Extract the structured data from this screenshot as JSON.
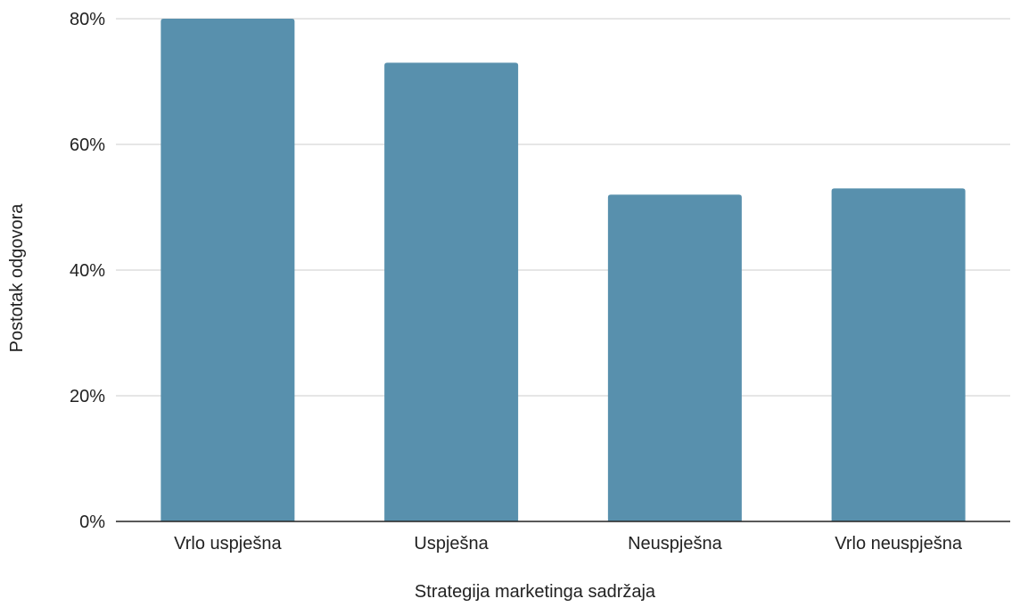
{
  "chart_data": {
    "type": "bar",
    "title": "",
    "xlabel": "Strategija marketinga sadržaja",
    "ylabel": "Postotak odgovora",
    "categories": [
      "Vrlo uspješna",
      "Uspješna",
      "Neuspješna",
      "Vrlo neuspješna"
    ],
    "values": [
      80,
      73,
      52,
      53
    ],
    "y_unit": "%",
    "ylim": [
      0,
      80
    ],
    "yticks": [
      0,
      20,
      40,
      60,
      80
    ],
    "ytick_labels": [
      "0%",
      "20%",
      "40%",
      "60%",
      "80%"
    ],
    "grid": true,
    "legend": "none",
    "colors": {
      "bar": "#5890ad",
      "grid": "#cccccc",
      "axis": "#222222",
      "text": "#222222"
    }
  }
}
